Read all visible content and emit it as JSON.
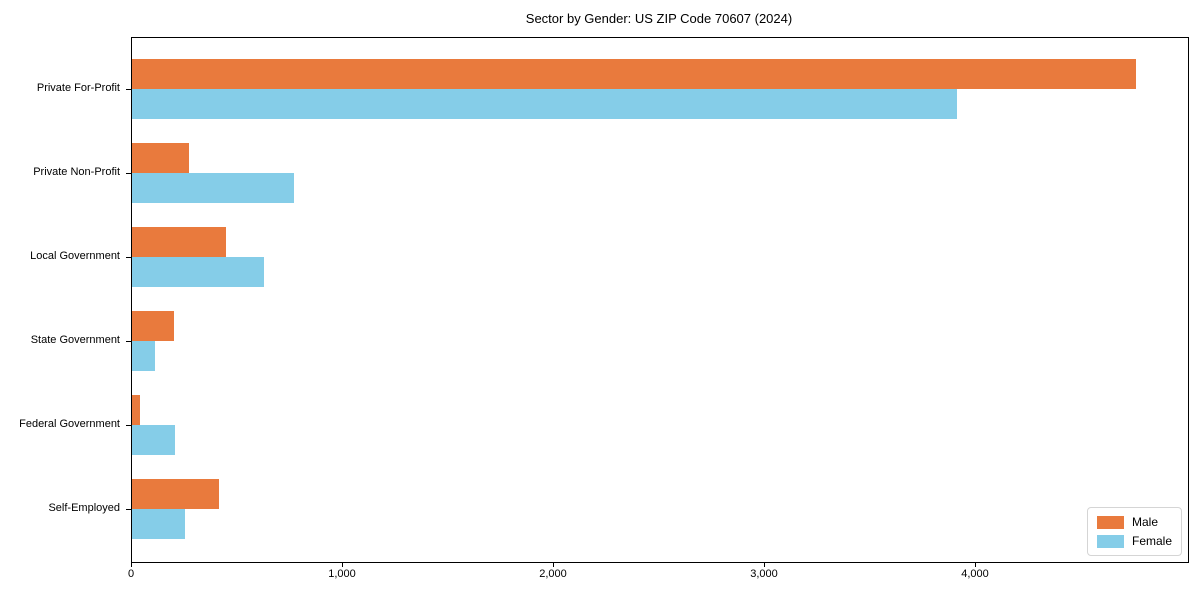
{
  "chart_data": {
    "type": "bar",
    "orientation": "horizontal",
    "title": "Sector by Gender: US ZIP Code 70607 (2024)",
    "xlabel": "",
    "ylabel": "",
    "categories": [
      "Private For-Profit",
      "Private Non-Profit",
      "Local Government",
      "State Government",
      "Federal Government",
      "Self-Employed"
    ],
    "series": [
      {
        "name": "Male",
        "color": "#e97a3d",
        "values": [
          4760,
          270,
          445,
          200,
          40,
          410
        ]
      },
      {
        "name": "Female",
        "color": "#85cde8",
        "values": [
          3910,
          770,
          625,
          110,
          205,
          250
        ]
      }
    ],
    "xlim": [
      0,
      5005
    ],
    "x_ticks": [
      0,
      1000,
      2000,
      3000,
      4000
    ],
    "x_tick_labels": [
      "0",
      "1,000",
      "2,000",
      "3,000",
      "4,000"
    ],
    "grid": false,
    "legend_position": "lower right",
    "legend_entries": [
      "Male",
      "Female"
    ]
  }
}
